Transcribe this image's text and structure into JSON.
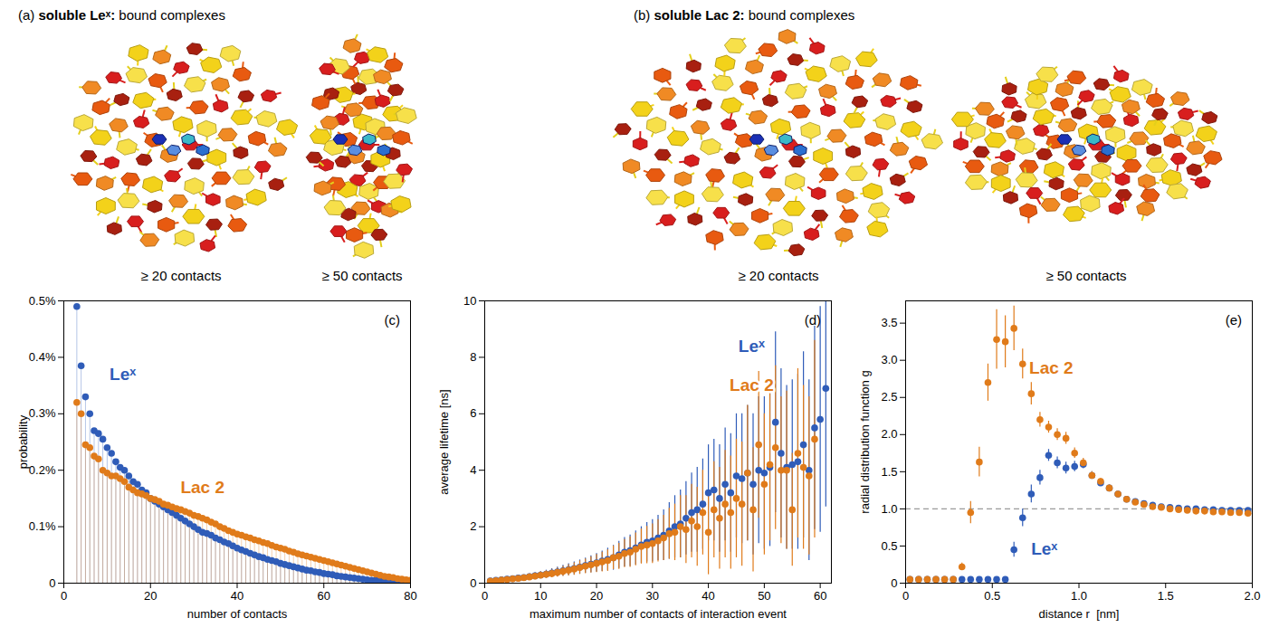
{
  "images": [
    {
      "label": "(a)",
      "title": "soluble Leˣ:",
      "subtitle": "bound complexes",
      "captions": [
        "≥ 20 contacts",
        "≥ 50 contacts"
      ]
    },
    {
      "label": "(b)",
      "title": "soluble Lac 2:",
      "subtitle": "bound complexes",
      "captions": [
        "≥ 20 contacts",
        "≥ 50 contacts"
      ]
    }
  ],
  "chart_data": [
    {
      "type": "stem",
      "panel_label": "(c)",
      "x_label": "number of contacts",
      "y_label": "probability",
      "xlim": [
        0,
        80
      ],
      "xticks": [
        0,
        20,
        40,
        60,
        80
      ],
      "ylim": [
        0,
        0.5
      ],
      "yticks": [
        0,
        {
          "value": 0.1,
          "label": "0.1%"
        },
        {
          "value": 0.2,
          "label": "0.2%"
        },
        {
          "value": 0.3,
          "label": "0.3%"
        },
        {
          "value": 0.4,
          "label": "0.4%"
        },
        {
          "value": 0.5,
          "label": "0.5%"
        }
      ],
      "marker": "circle",
      "x": [
        3,
        4,
        5,
        6,
        7,
        8,
        9,
        10,
        11,
        12,
        13,
        14,
        15,
        16,
        17,
        18,
        19,
        20,
        21,
        22,
        23,
        24,
        25,
        26,
        27,
        28,
        29,
        30,
        31,
        32,
        33,
        34,
        35,
        36,
        37,
        38,
        39,
        40,
        41,
        42,
        43,
        44,
        45,
        46,
        47,
        48,
        49,
        50,
        51,
        52,
        53,
        54,
        55,
        56,
        57,
        58,
        59,
        60,
        61,
        62,
        63,
        64,
        65,
        66,
        67,
        68,
        69,
        70,
        71,
        72,
        73,
        74,
        75,
        76,
        77,
        78,
        79,
        80
      ],
      "series": [
        {
          "name": "Leˣ",
          "color": "#2f5cb8",
          "values": [
            0.49,
            0.385,
            0.33,
            0.3,
            0.27,
            0.265,
            0.255,
            0.24,
            0.23,
            0.215,
            0.205,
            0.2,
            0.19,
            0.18,
            0.175,
            0.165,
            0.16,
            0.15,
            0.145,
            0.14,
            0.135,
            0.13,
            0.125,
            0.12,
            0.115,
            0.11,
            0.105,
            0.1,
            0.095,
            0.09,
            0.088,
            0.085,
            0.08,
            0.077,
            0.073,
            0.07,
            0.066,
            0.062,
            0.059,
            0.056,
            0.053,
            0.05,
            0.047,
            0.045,
            0.042,
            0.04,
            0.038,
            0.035,
            0.033,
            0.031,
            0.029,
            0.027,
            0.025,
            0.023,
            0.022,
            0.02,
            0.019,
            0.017,
            0.016,
            0.015,
            0.013,
            0.012,
            0.011,
            0.01,
            0.009,
            0.008,
            0.007,
            0.006,
            0.005,
            0.005,
            0.004,
            0.003,
            0.003,
            0.002,
            0.002,
            0.001,
            0.001,
            0.001
          ]
        },
        {
          "name": "Lac 2",
          "color": "#e07b1a",
          "values": [
            0.32,
            0.3,
            0.245,
            0.24,
            0.225,
            0.22,
            0.2,
            0.195,
            0.19,
            0.19,
            0.185,
            0.18,
            0.17,
            0.165,
            0.16,
            0.158,
            0.155,
            0.15,
            0.148,
            0.145,
            0.14,
            0.138,
            0.135,
            0.132,
            0.13,
            0.127,
            0.124,
            0.12,
            0.118,
            0.115,
            0.112,
            0.108,
            0.105,
            0.1,
            0.097,
            0.093,
            0.09,
            0.087,
            0.085,
            0.082,
            0.08,
            0.077,
            0.075,
            0.072,
            0.07,
            0.067,
            0.064,
            0.062,
            0.06,
            0.057,
            0.055,
            0.052,
            0.05,
            0.048,
            0.046,
            0.044,
            0.042,
            0.04,
            0.038,
            0.036,
            0.034,
            0.032,
            0.03,
            0.028,
            0.026,
            0.024,
            0.022,
            0.02,
            0.018,
            0.016,
            0.014,
            0.012,
            0.011,
            0.01,
            0.008,
            0.007,
            0.006,
            0.005
          ]
        }
      ]
    },
    {
      "type": "scatter",
      "panel_label": "(d)",
      "x_label": "maximum number of contacts of interaction event",
      "y_label": "average lifetime [ns]",
      "xlim": [
        0,
        62
      ],
      "xticks": [
        0,
        10,
        20,
        30,
        40,
        50,
        60
      ],
      "ylim": [
        0,
        10
      ],
      "yticks": [
        0,
        2,
        4,
        6,
        8,
        10
      ],
      "marker": "circle",
      "x": [
        1,
        2,
        3,
        4,
        5,
        6,
        7,
        8,
        9,
        10,
        11,
        12,
        13,
        14,
        15,
        16,
        17,
        18,
        19,
        20,
        21,
        22,
        23,
        24,
        25,
        26,
        27,
        28,
        29,
        30,
        31,
        32,
        33,
        34,
        35,
        36,
        37,
        38,
        39,
        40,
        41,
        42,
        43,
        44,
        45,
        46,
        47,
        48,
        49,
        50,
        51,
        52,
        53,
        54,
        55,
        56,
        57,
        58,
        59,
        60,
        61
      ],
      "series": [
        {
          "name": "Leˣ",
          "color": "#2f5cb8",
          "values": [
            0.08,
            0.1,
            0.12,
            0.14,
            0.16,
            0.18,
            0.2,
            0.23,
            0.26,
            0.29,
            0.32,
            0.36,
            0.4,
            0.44,
            0.48,
            0.52,
            0.57,
            0.62,
            0.67,
            0.72,
            0.78,
            0.84,
            0.9,
            1.0,
            1.1,
            1.15,
            1.25,
            1.35,
            1.45,
            1.5,
            1.6,
            1.7,
            1.85,
            2.0,
            2.1,
            2.3,
            2.5,
            2.6,
            2.8,
            3.2,
            3.3,
            3.0,
            3.5,
            3.2,
            3.8,
            3.7,
            3.9,
            3.5,
            4.0,
            3.9,
            4.1,
            5.7,
            4.6,
            4.1,
            4.2,
            4.3,
            4.9,
            4.0,
            5.5,
            5.8,
            6.9
          ],
          "errors": [
            0.04,
            0.05,
            0.05,
            0.06,
            0.07,
            0.08,
            0.09,
            0.1,
            0.11,
            0.12,
            0.14,
            0.15,
            0.17,
            0.19,
            0.21,
            0.23,
            0.25,
            0.27,
            0.3,
            0.33,
            0.36,
            0.4,
            0.44,
            0.48,
            0.52,
            0.56,
            0.6,
            0.65,
            0.7,
            0.75,
            0.8,
            0.9,
            1.0,
            1.1,
            1.2,
            1.3,
            1.4,
            1.5,
            1.6,
            1.7,
            1.8,
            1.9,
            2.0,
            2.1,
            2.2,
            2.3,
            2.4,
            2.5,
            2.6,
            2.7,
            2.8,
            3.2,
            3.0,
            2.9,
            3.0,
            3.1,
            3.3,
            3.2,
            3.6,
            4.0,
            4.2
          ]
        },
        {
          "name": "Lac 2",
          "color": "#e07b1a",
          "values": [
            0.07,
            0.09,
            0.11,
            0.13,
            0.15,
            0.17,
            0.19,
            0.22,
            0.25,
            0.28,
            0.31,
            0.34,
            0.38,
            0.42,
            0.46,
            0.5,
            0.55,
            0.6,
            0.65,
            0.7,
            0.75,
            0.8,
            0.9,
            0.95,
            1.05,
            1.1,
            1.2,
            1.3,
            1.35,
            1.4,
            1.5,
            1.6,
            1.75,
            1.8,
            2.0,
            1.9,
            2.2,
            2.0,
            2.5,
            1.8,
            2.6,
            2.3,
            2.8,
            2.5,
            3.0,
            2.8,
            3.9,
            2.6,
            4.9,
            3.5,
            4.2,
            4.8,
            4.0,
            4.0,
            2.6,
            4.6,
            4.1,
            3.8,
            5.1,
            null,
            null
          ],
          "errors": [
            0.04,
            0.05,
            0.05,
            0.06,
            0.07,
            0.08,
            0.09,
            0.1,
            0.11,
            0.12,
            0.13,
            0.15,
            0.16,
            0.18,
            0.2,
            0.22,
            0.24,
            0.26,
            0.29,
            0.32,
            0.35,
            0.38,
            0.42,
            0.46,
            0.5,
            0.54,
            0.58,
            0.62,
            0.66,
            0.7,
            0.75,
            0.8,
            0.9,
            1.0,
            1.1,
            1.2,
            1.3,
            1.4,
            1.5,
            1.5,
            1.7,
            1.8,
            1.9,
            2.0,
            2.1,
            2.2,
            2.4,
            2.2,
            2.6,
            2.5,
            2.7,
            2.9,
            2.6,
            2.8,
            2.0,
            3.0,
            2.9,
            2.8,
            3.5,
            null,
            null
          ]
        }
      ]
    },
    {
      "type": "scatter",
      "panel_label": "(e)",
      "x_label": "distance r  [nm]",
      "y_label": "radial distribution function g",
      "xlim": [
        0,
        2.0
      ],
      "xticks": [
        0,
        0.5,
        {
          "value": 1.0,
          "label": "1.0"
        },
        1.5,
        {
          "value": 2.0,
          "label": "2.0"
        }
      ],
      "ylim": [
        0,
        3.8
      ],
      "yticks": [
        0,
        0.5,
        {
          "value": 1.0,
          "label": "1.0"
        },
        1.5,
        {
          "value": 2.0,
          "label": "2.0"
        },
        2.5,
        {
          "value": 3.0,
          "label": "3.0"
        },
        3.5
      ],
      "reference_y": 1,
      "marker": "circle",
      "x": [
        0.025,
        0.075,
        0.125,
        0.175,
        0.225,
        0.275,
        0.325,
        0.375,
        0.425,
        0.475,
        0.525,
        0.575,
        0.625,
        0.675,
        0.725,
        0.775,
        0.825,
        0.875,
        0.925,
        0.975,
        1.025,
        1.075,
        1.125,
        1.175,
        1.225,
        1.275,
        1.325,
        1.375,
        1.425,
        1.475,
        1.525,
        1.575,
        1.625,
        1.675,
        1.725,
        1.775,
        1.825,
        1.875,
        1.925,
        1.975
      ],
      "series": [
        {
          "name": "Leˣ",
          "color": "#2f5cb8",
          "values": [
            0.05,
            0.05,
            0.05,
            0.05,
            0.05,
            0.05,
            0.05,
            0.05,
            0.05,
            0.05,
            0.05,
            0.05,
            0.45,
            0.88,
            1.2,
            1.42,
            1.72,
            1.62,
            1.55,
            1.57,
            1.6,
            1.45,
            1.35,
            1.28,
            1.2,
            1.13,
            1.1,
            1.07,
            1.05,
            1.03,
            1.02,
            1.01,
            1.0,
            1.0,
            0.99,
            0.99,
            0.98,
            0.98,
            0.98,
            0.98
          ],
          "errors": [
            0.02,
            0.02,
            0.02,
            0.02,
            0.02,
            0.02,
            0.02,
            0.02,
            0.02,
            0.02,
            0.02,
            0.02,
            0.1,
            0.12,
            0.12,
            0.1,
            0.08,
            0.08,
            0.08,
            0.07,
            0.06,
            0.05,
            0.04,
            0.04,
            0.03,
            0.03,
            0.03,
            0.02,
            0.02,
            0.02,
            0.02,
            0.02,
            0.02,
            0.02,
            0.02,
            0.02,
            0.02,
            0.02,
            0.02,
            0.02
          ]
        },
        {
          "name": "Lac 2",
          "color": "#e07b1a",
          "values": [
            0.05,
            0.05,
            0.05,
            0.05,
            0.05,
            0.05,
            0.22,
            0.95,
            1.63,
            2.7,
            3.28,
            3.25,
            3.43,
            2.95,
            2.55,
            2.2,
            2.1,
            2.0,
            1.95,
            1.75,
            1.62,
            1.45,
            1.37,
            1.28,
            1.2,
            1.13,
            1.09,
            1.06,
            1.03,
            1.02,
            1.0,
            0.99,
            0.98,
            0.97,
            0.97,
            0.96,
            0.96,
            0.95,
            0.95,
            0.94
          ],
          "errors": [
            0.02,
            0.02,
            0.02,
            0.02,
            0.02,
            0.02,
            0.05,
            0.15,
            0.2,
            0.25,
            0.4,
            0.35,
            0.3,
            0.2,
            0.15,
            0.1,
            0.08,
            0.08,
            0.08,
            0.07,
            0.06,
            0.05,
            0.04,
            0.04,
            0.03,
            0.03,
            0.02,
            0.02,
            0.02,
            0.02,
            0.02,
            0.02,
            0.02,
            0.02,
            0.02,
            0.02,
            0.02,
            0.02,
            0.02,
            0.02
          ]
        }
      ]
    }
  ]
}
